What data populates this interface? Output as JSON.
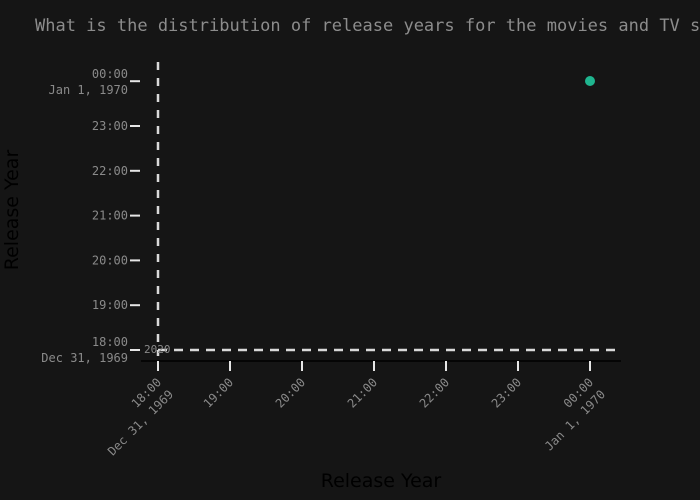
{
  "chart_data": {
    "type": "scatter",
    "title": "What is the distribution of release years for the movies and TV shows?",
    "xlabel": "Release Year",
    "ylabel": "Release Year",
    "x_ticks": [
      {
        "line1": "18:00",
        "line2": "Dec 31, 1969"
      },
      {
        "line1": "19:00",
        "line2": ""
      },
      {
        "line1": "20:00",
        "line2": ""
      },
      {
        "line1": "21:00",
        "line2": ""
      },
      {
        "line1": "22:00",
        "line2": ""
      },
      {
        "line1": "23:00",
        "line2": ""
      },
      {
        "line1": "00:00",
        "line2": "Jan 1, 1970"
      }
    ],
    "y_ticks": [
      {
        "line1": "18:00",
        "line2": "Dec 31, 1969"
      },
      {
        "line1": "19:00",
        "line2": ""
      },
      {
        "line1": "20:00",
        "line2": ""
      },
      {
        "line1": "21:00",
        "line2": ""
      },
      {
        "line1": "22:00",
        "line2": ""
      },
      {
        "line1": "23:00",
        "line2": ""
      },
      {
        "line1": "00:00",
        "line2": "Jan 1, 1970"
      }
    ],
    "points": [
      {
        "x": "1970-01-01T00:00:00",
        "y": "1970-01-01T00:00:00"
      }
    ],
    "rule_label": "2020",
    "colors": {
      "background": "#151515",
      "point": "#1fb58f",
      "axis": "#e6e6e6",
      "rule": "#d9d9d9",
      "text": "#8a8a8a",
      "title": "#8c8c8c",
      "axis_title": "#000000"
    }
  }
}
